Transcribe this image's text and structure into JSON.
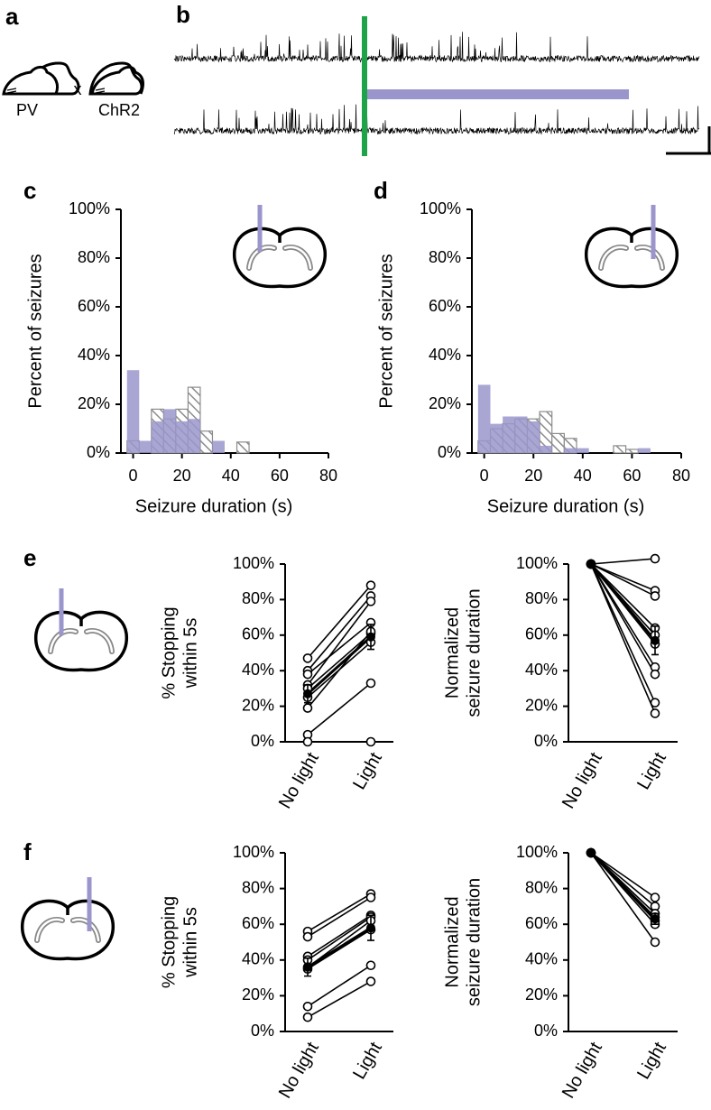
{
  "panel_labels": [
    "a",
    "b",
    "c",
    "d",
    "e",
    "f"
  ],
  "panel_a": {
    "left": "PV",
    "cross": "x",
    "right": "ChR2"
  },
  "chart_data": [
    {
      "type": "histogram",
      "ylabel": "Percent of seizures",
      "xlabel": "Seizure duration (s)",
      "bins": [
        -2.5,
        2.5,
        7.5,
        12.5,
        17.5,
        22.5,
        27.5,
        32.5,
        37.5,
        42.5,
        47.5
      ],
      "series": [
        {
          "color": "#8c8c8c",
          "pattern": "hatch",
          "values": [
            5,
            0,
            18,
            14,
            18,
            27,
            9,
            0,
            0,
            4.5
          ]
        },
        {
          "color": "#9a96cc",
          "values": [
            34,
            5,
            13,
            18,
            13,
            14,
            0,
            5,
            0,
            0
          ]
        }
      ],
      "xlim": [
        -5,
        80
      ],
      "xticks": [
        0,
        20,
        40,
        60,
        80
      ],
      "ylim": [
        0,
        100
      ],
      "yticks": [
        {
          "value": 0,
          "label": "0%"
        },
        {
          "value": 20,
          "label": "20%"
        },
        {
          "value": 40,
          "label": "40%"
        },
        {
          "value": 60,
          "label": "60%"
        },
        {
          "value": 80,
          "label": "80%"
        },
        {
          "value": 100,
          "label": "100%"
        }
      ]
    },
    {
      "type": "histogram",
      "ylabel": "Percent of seizures",
      "xlabel": "Seizure duration (s)",
      "bins": [
        -2.5,
        2.5,
        7.5,
        12.5,
        17.5,
        22.5,
        27.5,
        32.5,
        37.5,
        42.5,
        47.5,
        52.5,
        57.5,
        62.5,
        67.5
      ],
      "series": [
        {
          "color": "#8c8c8c",
          "pattern": "hatch",
          "values": [
            5,
            10,
            12,
            14,
            14,
            17,
            8,
            6,
            0,
            0,
            0,
            3,
            1.5,
            0
          ]
        },
        {
          "color": "#9a96cc",
          "values": [
            28,
            12,
            15,
            15,
            13,
            3,
            0,
            2,
            2,
            0,
            0,
            0,
            0,
            2
          ]
        }
      ],
      "xlim": [
        -5,
        80
      ],
      "xticks": [
        0,
        20,
        40,
        60,
        80
      ],
      "ylim": [
        0,
        100
      ],
      "yticks": [
        {
          "value": 0,
          "label": "0%"
        },
        {
          "value": 20,
          "label": "20%"
        },
        {
          "value": 40,
          "label": "40%"
        },
        {
          "value": 60,
          "label": "60%"
        },
        {
          "value": 80,
          "label": "80%"
        },
        {
          "value": 100,
          "label": "100%"
        }
      ]
    },
    {
      "type": "paired",
      "ylabel": [
        "% Stopping",
        "within 5s"
      ],
      "categories": [
        "No light",
        "Light"
      ],
      "ylim": [
        0,
        100
      ],
      "yticks": [
        {
          "value": 0,
          "label": "0%"
        },
        {
          "value": 20,
          "label": "20%"
        },
        {
          "value": 40,
          "label": "40%"
        },
        {
          "value": 60,
          "label": "60%"
        },
        {
          "value": 80,
          "label": "80%"
        },
        {
          "value": 100,
          "label": "100%"
        }
      ],
      "series": [
        {
          "color": "#000000",
          "values": [
            47,
            88
          ]
        },
        {
          "color": "#000000",
          "values": [
            40,
            82
          ]
        },
        {
          "color": "#000000",
          "values": [
            38,
            67
          ]
        },
        {
          "color": "#000000",
          "values": [
            32,
            79
          ]
        },
        {
          "color": "#000000",
          "values": [
            30,
            61
          ]
        },
        {
          "color": "#000000",
          "values": [
            25,
            56
          ]
        },
        {
          "color": "#000000",
          "values": [
            19,
            62
          ]
        },
        {
          "color": "#000000",
          "values": [
            4,
            33
          ]
        },
        {
          "color": "#000000",
          "values": [
            0,
            0
          ]
        }
      ],
      "mean": {
        "color": "#000000",
        "values": [
          27,
          59
        ],
        "errors": [
          5,
          7
        ]
      }
    },
    {
      "type": "paired",
      "ylabel": [
        "Normalized",
        "seizure duration"
      ],
      "categories": [
        "No light",
        "Light"
      ],
      "ylim": [
        0,
        100
      ],
      "yticks": [
        {
          "value": 0,
          "label": "0%"
        },
        {
          "value": 20,
          "label": "20%"
        },
        {
          "value": 40,
          "label": "40%"
        },
        {
          "value": 60,
          "label": "60%"
        },
        {
          "value": 80,
          "label": "80%"
        },
        {
          "value": 100,
          "label": "100%"
        }
      ],
      "series": [
        {
          "color": "#000000",
          "values": [
            100,
            103
          ]
        },
        {
          "color": "#000000",
          "values": [
            100,
            85
          ]
        },
        {
          "color": "#000000",
          "values": [
            100,
            82
          ]
        },
        {
          "color": "#000000",
          "values": [
            100,
            64
          ]
        },
        {
          "color": "#000000",
          "values": [
            100,
            60
          ]
        },
        {
          "color": "#000000",
          "values": [
            100,
            55
          ]
        },
        {
          "color": "#000000",
          "values": [
            100,
            42
          ]
        },
        {
          "color": "#000000",
          "values": [
            100,
            38
          ]
        },
        {
          "color": "#000000",
          "values": [
            100,
            22
          ]
        },
        {
          "color": "#000000",
          "values": [
            100,
            16
          ]
        }
      ],
      "mean": {
        "color": "#000000",
        "values": [
          100,
          57
        ],
        "errors": [
          0,
          8
        ]
      }
    },
    {
      "type": "paired",
      "ylabel": [
        "% Stopping",
        "within 5s"
      ],
      "categories": [
        "No light",
        "Light"
      ],
      "ylim": [
        0,
        100
      ],
      "yticks": [
        {
          "value": 0,
          "label": "0%"
        },
        {
          "value": 20,
          "label": "20%"
        },
        {
          "value": 40,
          "label": "40%"
        },
        {
          "value": 60,
          "label": "60%"
        },
        {
          "value": 80,
          "label": "80%"
        },
        {
          "value": 100,
          "label": "100%"
        }
      ],
      "series": [
        {
          "color": "#000000",
          "values": [
            56,
            77
          ]
        },
        {
          "color": "#000000",
          "values": [
            53,
            75
          ]
        },
        {
          "color": "#000000",
          "values": [
            42,
            65
          ]
        },
        {
          "color": "#000000",
          "values": [
            40,
            64
          ]
        },
        {
          "color": "#000000",
          "values": [
            36,
            62
          ]
        },
        {
          "color": "#000000",
          "values": [
            35,
            57
          ]
        },
        {
          "color": "#000000",
          "values": [
            14,
            37
          ]
        },
        {
          "color": "#000000",
          "values": [
            8,
            28
          ]
        }
      ],
      "mean": {
        "color": "#000000",
        "values": [
          36,
          58
        ],
        "errors": [
          5,
          7
        ]
      }
    },
    {
      "type": "paired",
      "ylabel": [
        "Normalized",
        "seizure duration"
      ],
      "categories": [
        "No light",
        "Light"
      ],
      "ylim": [
        0,
        100
      ],
      "yticks": [
        {
          "value": 0,
          "label": "0%"
        },
        {
          "value": 20,
          "label": "20%"
        },
        {
          "value": 40,
          "label": "40%"
        },
        {
          "value": 60,
          "label": "60%"
        },
        {
          "value": 80,
          "label": "80%"
        },
        {
          "value": 100,
          "label": "100%"
        }
      ],
      "series": [
        {
          "color": "#000000",
          "values": [
            100,
            75
          ]
        },
        {
          "color": "#000000",
          "values": [
            100,
            70
          ]
        },
        {
          "color": "#000000",
          "values": [
            100,
            66
          ]
        },
        {
          "color": "#000000",
          "values": [
            100,
            64
          ]
        },
        {
          "color": "#000000",
          "values": [
            100,
            62
          ]
        },
        {
          "color": "#000000",
          "values": [
            100,
            60
          ]
        },
        {
          "color": "#000000",
          "values": [
            100,
            50
          ]
        }
      ],
      "mean": {
        "color": "#000000",
        "values": [
          100,
          63
        ],
        "errors": [
          0,
          3
        ]
      }
    }
  ]
}
